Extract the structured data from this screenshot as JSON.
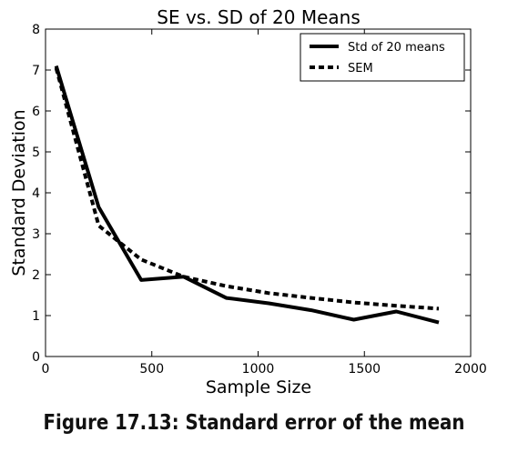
{
  "chart_data": {
    "type": "line",
    "title": "SE vs. SD of 20 Means",
    "xlabel": "Sample Size",
    "ylabel": "Standard Deviation",
    "xlim": [
      0,
      2000
    ],
    "ylim": [
      0,
      8
    ],
    "xticks": [
      0,
      500,
      1000,
      1500,
      2000
    ],
    "yticks": [
      0,
      1,
      2,
      3,
      4,
      5,
      6,
      7,
      8
    ],
    "grid": false,
    "legend_position": "top-right",
    "series": [
      {
        "name": "Std of 20 means",
        "style": "solid",
        "color": "#000000",
        "x": [
          50,
          250,
          450,
          650,
          850,
          1050,
          1250,
          1450,
          1650,
          1850
        ],
        "y": [
          7.1,
          3.65,
          1.87,
          1.95,
          1.43,
          1.3,
          1.13,
          0.9,
          1.1,
          0.83
        ]
      },
      {
        "name": "SEM",
        "style": "dotted",
        "color": "#000000",
        "x": [
          50,
          250,
          450,
          650,
          850,
          1050,
          1250,
          1450,
          1650,
          1850
        ],
        "y": [
          7.05,
          3.2,
          2.37,
          1.95,
          1.72,
          1.55,
          1.43,
          1.32,
          1.24,
          1.17
        ]
      }
    ]
  },
  "caption": "Figure 17.13: Standard error of the mean"
}
